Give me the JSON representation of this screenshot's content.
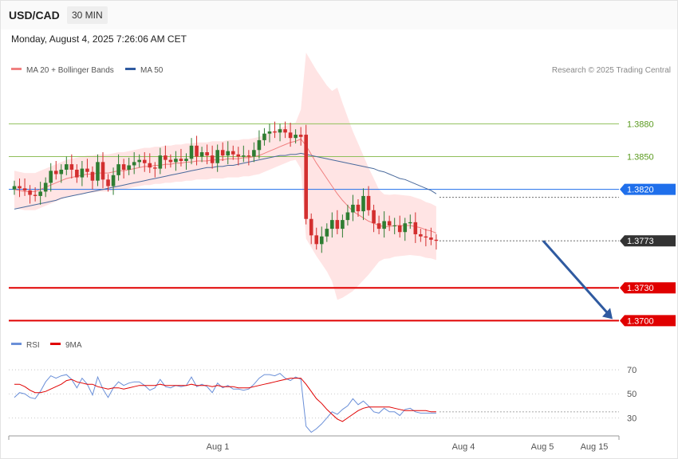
{
  "header": {
    "symbol": "USD/CAD",
    "timeframe": "30 MIN",
    "datetime": "Monday, August 4, 2025 7:26:06 AM CET"
  },
  "legend": {
    "ma20": "MA 20 + Bollinger Bands",
    "ma50": "MA 50",
    "copyright": "Research © 2025 Trading Central"
  },
  "rsi_legend": {
    "rsi": "RSI",
    "ma9": "9MA"
  },
  "colors": {
    "bull": "#2e7d32",
    "bear": "#d32f2f",
    "ma20": "#f08080",
    "ma50": "#4a6a9c",
    "bands_fill": "#ffe3e3",
    "support": "#e00000",
    "current": "#333333",
    "pivot": "#1f6feb",
    "resistance": "#8fbf5a",
    "arrow": "#2f5aa0",
    "rsi": "#6a8fd8"
  },
  "chart_data": [
    {
      "type": "line",
      "title": "USD/CAD 30 MIN",
      "ylim": [
        1.3685,
        1.3905
      ],
      "x_ticks": [
        "Aug 1",
        "Aug 4",
        "Aug 5",
        "Aug 15"
      ],
      "levels": [
        {
          "value": 1.388,
          "label": "1.3880",
          "kind": "resistance"
        },
        {
          "value": 1.385,
          "label": "1.3850",
          "kind": "resistance"
        },
        {
          "value": 1.382,
          "label": "1.3820",
          "kind": "pivot"
        },
        {
          "value": 1.3773,
          "label": "1.3773",
          "kind": "current"
        },
        {
          "value": 1.373,
          "label": "1.3730",
          "kind": "support"
        },
        {
          "value": 1.37,
          "label": "1.3700",
          "kind": "support"
        }
      ],
      "candles": {
        "close": [
          1.3823,
          1.3821,
          1.3819,
          1.3815,
          1.3814,
          1.3818,
          1.3826,
          1.3837,
          1.3834,
          1.3838,
          1.3843,
          1.3838,
          1.3831,
          1.3839,
          1.3836,
          1.3828,
          1.3845,
          1.3829,
          1.3823,
          1.3833,
          1.3843,
          1.3838,
          1.3842,
          1.3845,
          1.3847,
          1.3844,
          1.384,
          1.3839,
          1.3851,
          1.3847,
          1.3845,
          1.3848,
          1.3846,
          1.3848,
          1.386,
          1.385,
          1.3854,
          1.3851,
          1.3844,
          1.3856,
          1.3851,
          1.3855,
          1.3852,
          1.385,
          1.3851,
          1.385,
          1.3856,
          1.3865,
          1.3871,
          1.3873,
          1.3872,
          1.3875,
          1.3872,
          1.3867,
          1.387,
          1.3868,
          1.3793,
          1.3778,
          1.377,
          1.3777,
          1.3784,
          1.3792,
          1.3784,
          1.3792,
          1.3799,
          1.3806,
          1.38,
          1.3814,
          1.3801,
          1.3789,
          1.3784,
          1.3791,
          1.3787,
          1.3787,
          1.3781,
          1.3789,
          1.379,
          1.3779,
          1.3777,
          1.3776,
          1.3774,
          1.3773
        ],
        "volatility": "open/high/low derived from close in script"
      },
      "overlay_series": [
        {
          "name": "MA 20 + Bollinger Bands",
          "values": [
            1.382,
            1.3819,
            1.3818,
            1.3818,
            1.3818,
            1.382,
            1.3822,
            1.3824,
            1.3826,
            1.3828,
            1.383,
            1.3831,
            1.3832,
            1.3833,
            1.3834,
            1.3834,
            1.3835,
            1.3835,
            1.3835,
            1.3836,
            1.3837,
            1.3837,
            1.3838,
            1.3839,
            1.384,
            1.3841,
            1.3841,
            1.3842,
            1.3842,
            1.3843,
            1.3843,
            1.3844,
            1.3844,
            1.3845,
            1.3845,
            1.3846,
            1.3846,
            1.3846,
            1.3847,
            1.3847,
            1.3847,
            1.3848,
            1.3848,
            1.3848,
            1.3849,
            1.3849,
            1.385,
            1.3851,
            1.3853,
            1.3855,
            1.3857,
            1.3859,
            1.3861,
            1.3863,
            1.3864,
            1.3866,
            1.386,
            1.3852,
            1.3844,
            1.3837,
            1.383,
            1.3823,
            1.3816,
            1.381,
            1.3805,
            1.38,
            1.3797,
            1.3794,
            1.3791,
            1.3789,
            1.3787,
            1.3786,
            1.3786,
            1.3787,
            1.3787,
            1.3787,
            1.3787,
            1.3786,
            1.3785,
            1.3783,
            1.3782,
            1.378
          ]
        },
        {
          "name": "MA 50",
          "values": [
            1.3802,
            1.3803,
            1.3804,
            1.3805,
            1.3806,
            1.3807,
            1.3808,
            1.3809,
            1.381,
            1.3812,
            1.3813,
            1.3814,
            1.3815,
            1.3816,
            1.3817,
            1.3818,
            1.3819,
            1.382,
            1.3821,
            1.3822,
            1.3823,
            1.3824,
            1.3825,
            1.3826,
            1.3827,
            1.3828,
            1.3829,
            1.383,
            1.3831,
            1.3832,
            1.3833,
            1.3834,
            1.3835,
            1.3836,
            1.3837,
            1.3838,
            1.3839,
            1.384,
            1.384,
            1.3841,
            1.3841,
            1.3842,
            1.3842,
            1.3843,
            1.3844,
            1.3845,
            1.3846,
            1.3847,
            1.3848,
            1.3849,
            1.385,
            1.3851,
            1.3851,
            1.3852,
            1.3852,
            1.3853,
            1.3852,
            1.3851,
            1.385,
            1.3849,
            1.3848,
            1.3847,
            1.3846,
            1.3845,
            1.3844,
            1.3843,
            1.3842,
            1.3841,
            1.384,
            1.3839,
            1.3837,
            1.3836,
            1.3834,
            1.3832,
            1.383,
            1.3829,
            1.3827,
            1.3825,
            1.3823,
            1.3821,
            1.3819,
            1.3816
          ]
        }
      ]
    },
    {
      "type": "line",
      "title": "RSI",
      "ylim": [
        15,
        80
      ],
      "y_ticks": [
        "70",
        "50",
        "30"
      ],
      "series": [
        {
          "name": "RSI",
          "values": [
            47,
            51,
            50,
            47,
            46,
            52,
            60,
            65,
            63,
            65,
            66,
            62,
            55,
            63,
            58,
            49,
            64,
            54,
            47,
            55,
            60,
            57,
            59,
            60,
            60,
            57,
            53,
            55,
            62,
            56,
            55,
            57,
            56,
            57,
            64,
            56,
            58,
            56,
            51,
            59,
            55,
            57,
            54,
            54,
            53,
            54,
            58,
            63,
            66,
            66,
            65,
            67,
            63,
            61,
            64,
            62,
            23,
            18,
            21,
            25,
            30,
            35,
            33,
            37,
            40,
            46,
            41,
            44,
            40,
            35,
            34,
            38,
            35,
            35,
            32,
            37,
            38,
            35,
            34,
            34,
            34,
            34
          ]
        },
        {
          "name": "9MA",
          "values": [
            58,
            58,
            56,
            53,
            51,
            51,
            52,
            54,
            56,
            58,
            61,
            62,
            60,
            59,
            58,
            58,
            56,
            55,
            54,
            55,
            55,
            54,
            55,
            56,
            57,
            57,
            57,
            57,
            58,
            57,
            57,
            57,
            57,
            57,
            58,
            57,
            57,
            57,
            56,
            57,
            56,
            56,
            56,
            55,
            55,
            55,
            56,
            57,
            58,
            59,
            60,
            61,
            62,
            63,
            63,
            63,
            58,
            52,
            46,
            42,
            37,
            33,
            29,
            27,
            30,
            33,
            36,
            38,
            39,
            39,
            39,
            39,
            39,
            38,
            37,
            36,
            36,
            36,
            36,
            36,
            35,
            35
          ]
        }
      ]
    }
  ]
}
